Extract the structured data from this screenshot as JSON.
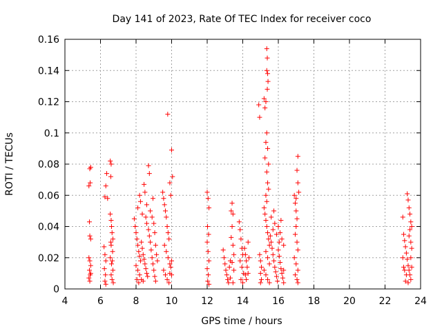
{
  "chart_data": {
    "type": "scatter",
    "title": "Day 141 of 2023, Rate Of TEC Index for receiver coco",
    "xlabel": "GPS time / hours",
    "ylabel": "ROTI / TECUs",
    "xlim": [
      4,
      24
    ],
    "ylim": [
      0,
      0.16
    ],
    "xticks": [
      "4",
      "6",
      "8",
      "10",
      "12",
      "14",
      "16",
      "18",
      "20",
      "22",
      "24"
    ],
    "yticks": [
      "0",
      "0.02",
      "0.04",
      "0.06",
      "0.08",
      "0.1",
      "0.12",
      "0.14",
      "0.16"
    ],
    "grid": true,
    "marker": "plus",
    "color": "#ff0000",
    "series": [
      {
        "points": [
          [
            5.35,
            0.066
          ],
          [
            5.4,
            0.077
          ],
          [
            5.45,
            0.078
          ],
          [
            5.42,
            0.068
          ],
          [
            5.38,
            0.043
          ],
          [
            5.4,
            0.034
          ],
          [
            5.45,
            0.032
          ],
          [
            5.35,
            0.02
          ],
          [
            5.4,
            0.018
          ],
          [
            5.45,
            0.015
          ],
          [
            5.38,
            0.012
          ],
          [
            5.42,
            0.009
          ],
          [
            5.35,
            0.007
          ],
          [
            5.45,
            0.01
          ],
          [
            5.4,
            0.005
          ],
          [
            6.2,
            0.027
          ],
          [
            6.25,
            0.022
          ],
          [
            6.3,
            0.018
          ],
          [
            6.22,
            0.013
          ],
          [
            6.28,
            0.009
          ],
          [
            6.25,
            0.005
          ],
          [
            6.3,
            0.003
          ],
          [
            6.35,
            0.074
          ],
          [
            6.3,
            0.066
          ],
          [
            6.4,
            0.058
          ],
          [
            6.25,
            0.059
          ],
          [
            6.55,
            0.082
          ],
          [
            6.6,
            0.08
          ],
          [
            6.58,
            0.072
          ],
          [
            6.55,
            0.048
          ],
          [
            6.6,
            0.044
          ],
          [
            6.62,
            0.04
          ],
          [
            6.65,
            0.036
          ],
          [
            6.7,
            0.032
          ],
          [
            6.6,
            0.028
          ],
          [
            6.68,
            0.024
          ],
          [
            6.55,
            0.02
          ],
          [
            6.62,
            0.016
          ],
          [
            6.7,
            0.012
          ],
          [
            6.6,
            0.009
          ],
          [
            6.65,
            0.006
          ],
          [
            6.72,
            0.004
          ],
          [
            6.58,
            0.03
          ],
          [
            6.66,
            0.018
          ],
          [
            7.9,
            0.045
          ],
          [
            7.95,
            0.04
          ],
          [
            8.0,
            0.036
          ],
          [
            8.05,
            0.032
          ],
          [
            8.1,
            0.028
          ],
          [
            8.15,
            0.024
          ],
          [
            8.2,
            0.021
          ],
          [
            8.25,
            0.018
          ],
          [
            8.0,
            0.015
          ],
          [
            8.1,
            0.012
          ],
          [
            8.2,
            0.009
          ],
          [
            8.05,
            0.006
          ],
          [
            8.15,
            0.004
          ],
          [
            8.3,
            0.03
          ],
          [
            8.35,
            0.026
          ],
          [
            8.4,
            0.022
          ],
          [
            8.45,
            0.019
          ],
          [
            8.5,
            0.016
          ],
          [
            8.55,
            0.013
          ],
          [
            8.6,
            0.01
          ],
          [
            8.65,
            0.008
          ],
          [
            8.3,
            0.006
          ],
          [
            8.4,
            0.005
          ],
          [
            8.2,
            0.06
          ],
          [
            8.25,
            0.056
          ],
          [
            8.1,
            0.052
          ],
          [
            8.45,
            0.067
          ],
          [
            8.5,
            0.062
          ],
          [
            8.55,
            0.046
          ],
          [
            8.6,
            0.042
          ],
          [
            8.7,
            0.079
          ],
          [
            8.75,
            0.074
          ],
          [
            8.7,
            0.038
          ],
          [
            8.75,
            0.034
          ],
          [
            8.8,
            0.03
          ],
          [
            8.85,
            0.025
          ],
          [
            8.9,
            0.02
          ],
          [
            8.95,
            0.016
          ],
          [
            9.0,
            0.012
          ],
          [
            9.05,
            0.008
          ],
          [
            9.1,
            0.005
          ],
          [
            8.8,
            0.05
          ],
          [
            8.9,
            0.046
          ],
          [
            9.0,
            0.042
          ],
          [
            9.05,
            0.036
          ],
          [
            9.1,
            0.028
          ],
          [
            9.15,
            0.022
          ],
          [
            9.2,
            0.018
          ],
          [
            8.95,
            0.058
          ],
          [
            8.35,
            0.048
          ],
          [
            8.6,
            0.054
          ],
          [
            9.5,
            0.062
          ],
          [
            9.55,
            0.058
          ],
          [
            9.6,
            0.054
          ],
          [
            9.65,
            0.05
          ],
          [
            9.7,
            0.046
          ],
          [
            9.75,
            0.04
          ],
          [
            9.8,
            0.036
          ],
          [
            9.85,
            0.032
          ],
          [
            9.6,
            0.028
          ],
          [
            9.7,
            0.024
          ],
          [
            9.8,
            0.02
          ],
          [
            9.9,
            0.016
          ],
          [
            9.55,
            0.012
          ],
          [
            9.65,
            0.009
          ],
          [
            9.75,
            0.006
          ],
          [
            9.85,
            0.004
          ],
          [
            9.9,
            0.01
          ],
          [
            9.95,
            0.014
          ],
          [
            10.0,
            0.018
          ],
          [
            10.0,
            0.009
          ],
          [
            9.78,
            0.112
          ],
          [
            9.9,
            0.068
          ],
          [
            10.0,
            0.089
          ],
          [
            10.05,
            0.072
          ],
          [
            9.95,
            0.06
          ],
          [
            12.0,
            0.062
          ],
          [
            12.05,
            0.058
          ],
          [
            12.1,
            0.052
          ],
          [
            12.02,
            0.04
          ],
          [
            12.08,
            0.035
          ],
          [
            12.0,
            0.03
          ],
          [
            12.05,
            0.024
          ],
          [
            12.1,
            0.018
          ],
          [
            12.0,
            0.013
          ],
          [
            12.06,
            0.009
          ],
          [
            12.03,
            0.005
          ],
          [
            12.1,
            0.003
          ],
          [
            12.9,
            0.025
          ],
          [
            12.95,
            0.02
          ],
          [
            13.0,
            0.016
          ],
          [
            13.05,
            0.012
          ],
          [
            13.1,
            0.009
          ],
          [
            13.15,
            0.006
          ],
          [
            13.2,
            0.004
          ],
          [
            13.25,
            0.014
          ],
          [
            13.3,
            0.018
          ],
          [
            13.35,
            0.05
          ],
          [
            13.4,
            0.055
          ],
          [
            13.45,
            0.048
          ],
          [
            13.4,
            0.04
          ],
          [
            13.35,
            0.033
          ],
          [
            13.45,
            0.028
          ],
          [
            13.5,
            0.022
          ],
          [
            13.4,
            0.017
          ],
          [
            13.5,
            0.012
          ],
          [
            13.3,
            0.007
          ],
          [
            13.45,
            0.004
          ],
          [
            13.8,
            0.043
          ],
          [
            13.85,
            0.038
          ],
          [
            13.9,
            0.032
          ],
          [
            13.95,
            0.026
          ],
          [
            14.0,
            0.022
          ],
          [
            13.85,
            0.018
          ],
          [
            13.95,
            0.014
          ],
          [
            14.05,
            0.01
          ],
          [
            13.9,
            0.006
          ],
          [
            14.0,
            0.004
          ],
          [
            14.1,
            0.026
          ],
          [
            14.15,
            0.022
          ],
          [
            14.2,
            0.018
          ],
          [
            14.25,
            0.014
          ],
          [
            14.15,
            0.009
          ],
          [
            14.2,
            0.006
          ],
          [
            14.3,
            0.03
          ],
          [
            14.35,
            0.02
          ],
          [
            14.3,
            0.01
          ],
          [
            14.9,
            0.118
          ],
          [
            14.95,
            0.11
          ],
          [
            14.95,
            0.022
          ],
          [
            15.0,
            0.018
          ],
          [
            15.05,
            0.014
          ],
          [
            15.0,
            0.01
          ],
          [
            15.05,
            0.006
          ],
          [
            15.0,
            0.004
          ],
          [
            15.2,
            0.122
          ],
          [
            15.25,
            0.116
          ],
          [
            15.3,
            0.12
          ],
          [
            15.35,
            0.154
          ],
          [
            15.38,
            0.148
          ],
          [
            15.35,
            0.14
          ],
          [
            15.4,
            0.138
          ],
          [
            15.42,
            0.133
          ],
          [
            15.38,
            0.128
          ],
          [
            15.35,
            0.1
          ],
          [
            15.3,
            0.094
          ],
          [
            15.4,
            0.09
          ],
          [
            15.25,
            0.084
          ],
          [
            15.45,
            0.08
          ],
          [
            15.35,
            0.075
          ],
          [
            15.4,
            0.068
          ],
          [
            15.45,
            0.064
          ],
          [
            15.3,
            0.06
          ],
          [
            15.35,
            0.056
          ],
          [
            15.2,
            0.052
          ],
          [
            15.25,
            0.048
          ],
          [
            15.3,
            0.044
          ],
          [
            15.35,
            0.04
          ],
          [
            15.4,
            0.036
          ],
          [
            15.45,
            0.032
          ],
          [
            15.5,
            0.028
          ],
          [
            15.3,
            0.024
          ],
          [
            15.4,
            0.02
          ],
          [
            15.5,
            0.016
          ],
          [
            15.2,
            0.012
          ],
          [
            15.3,
            0.009
          ],
          [
            15.4,
            0.006
          ],
          [
            15.5,
            0.004
          ],
          [
            15.6,
            0.03
          ],
          [
            15.65,
            0.026
          ],
          [
            15.7,
            0.022
          ],
          [
            15.75,
            0.018
          ],
          [
            15.8,
            0.014
          ],
          [
            15.85,
            0.011
          ],
          [
            15.9,
            0.008
          ],
          [
            15.95,
            0.005
          ],
          [
            16.0,
            0.025
          ],
          [
            16.05,
            0.021
          ],
          [
            16.1,
            0.017
          ],
          [
            16.15,
            0.013
          ],
          [
            16.2,
            0.01
          ],
          [
            16.25,
            0.007
          ],
          [
            16.3,
            0.004
          ],
          [
            15.7,
            0.038
          ],
          [
            15.8,
            0.042
          ],
          [
            15.9,
            0.035
          ],
          [
            16.0,
            0.04
          ],
          [
            16.1,
            0.036
          ],
          [
            16.2,
            0.032
          ],
          [
            16.3,
            0.028
          ],
          [
            15.6,
            0.046
          ],
          [
            15.75,
            0.05
          ],
          [
            16.15,
            0.044
          ],
          [
            16.3,
            0.012
          ],
          [
            15.55,
            0.034
          ],
          [
            16.05,
            0.03
          ],
          [
            16.9,
            0.06
          ],
          [
            16.95,
            0.055
          ],
          [
            17.0,
            0.05
          ],
          [
            17.05,
            0.045
          ],
          [
            17.0,
            0.04
          ],
          [
            16.95,
            0.035
          ],
          [
            17.05,
            0.03
          ],
          [
            17.1,
            0.025
          ],
          [
            16.9,
            0.02
          ],
          [
            17.0,
            0.016
          ],
          [
            17.1,
            0.012
          ],
          [
            16.95,
            0.009
          ],
          [
            17.05,
            0.006
          ],
          [
            17.1,
            0.004
          ],
          [
            17.1,
            0.085
          ],
          [
            17.05,
            0.076
          ],
          [
            17.1,
            0.068
          ],
          [
            17.15,
            0.062
          ],
          [
            17.0,
            0.058
          ],
          [
            23.0,
            0.046
          ],
          [
            23.05,
            0.035
          ],
          [
            23.1,
            0.031
          ],
          [
            23.15,
            0.027
          ],
          [
            23.2,
            0.023
          ],
          [
            23.25,
            0.019
          ],
          [
            23.3,
            0.015
          ],
          [
            23.35,
            0.012
          ],
          [
            23.4,
            0.009
          ],
          [
            23.45,
            0.006
          ],
          [
            23.3,
            0.004
          ],
          [
            23.2,
            0.009
          ],
          [
            23.1,
            0.012
          ],
          [
            23.25,
            0.061
          ],
          [
            23.3,
            0.057
          ],
          [
            23.35,
            0.052
          ],
          [
            23.4,
            0.048
          ],
          [
            23.45,
            0.043
          ],
          [
            23.4,
            0.038
          ],
          [
            23.35,
            0.034
          ],
          [
            23.45,
            0.03
          ],
          [
            23.5,
            0.04
          ],
          [
            23.5,
            0.026
          ],
          [
            23.45,
            0.02
          ],
          [
            23.5,
            0.014
          ],
          [
            23.15,
            0.005
          ],
          [
            23.0,
            0.02
          ],
          [
            23.05,
            0.014
          ]
        ]
      }
    ]
  }
}
